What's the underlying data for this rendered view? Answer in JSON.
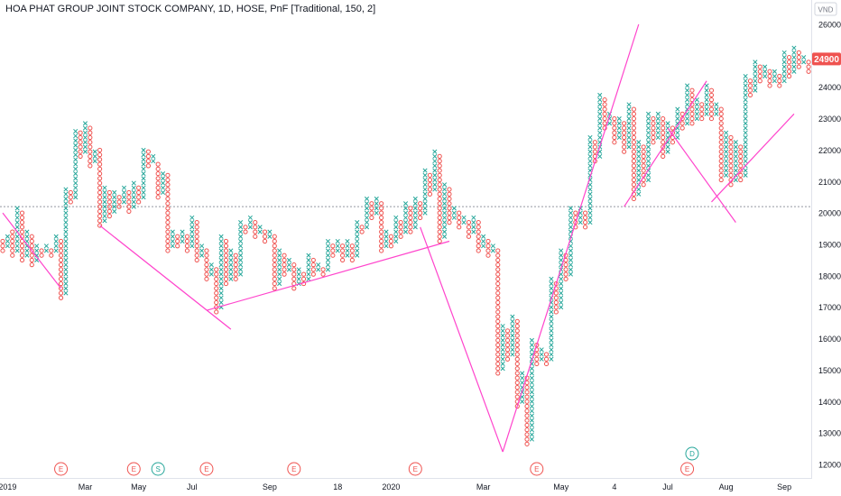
{
  "title": "HOA PHAT GROUP JOINT STOCK COMPANY, 1D, HOSE, PnF [Traditional, 150, 2]",
  "currency": "VND",
  "last_price": "24900",
  "colors": {
    "x": "#26a69a",
    "o": "#ef5350",
    "trendline": "#ff44cc",
    "price_tag": "#ef5350",
    "dotted_line": "#9598a1",
    "dividend_event": "#26a69a"
  },
  "chart_data": {
    "type": "point-and-figure",
    "box_size": 150,
    "reversal": 2,
    "ylim": [
      11700,
      26300
    ],
    "y_ticks": [
      "12000",
      "13000",
      "14000",
      "15000",
      "16000",
      "17000",
      "18000",
      "19000",
      "20000",
      "21000",
      "22000",
      "23000",
      "24000",
      "25000",
      "26000"
    ],
    "x_ticks": [
      {
        "label": "2019",
        "col": 1
      },
      {
        "label": "Mar",
        "col": 17
      },
      {
        "label": "May",
        "col": 28
      },
      {
        "label": "Jul",
        "col": 39
      },
      {
        "label": "Sep",
        "col": 55
      },
      {
        "label": "18",
        "col": 69
      },
      {
        "label": "2020",
        "col": 80
      },
      {
        "label": "Mar",
        "col": 99
      },
      {
        "label": "May",
        "col": 115
      },
      {
        "label": "4",
        "col": 126
      },
      {
        "label": "Jul",
        "col": 137
      },
      {
        "label": "Aug",
        "col": 149
      },
      {
        "label": "Sep",
        "col": 161
      }
    ],
    "columns": [
      {
        "t": "O",
        "lo": 18800,
        "hi": 19200
      },
      {
        "t": "X",
        "lo": 18950,
        "hi": 19350
      },
      {
        "t": "O",
        "lo": 18650,
        "hi": 19500
      },
      {
        "t": "X",
        "lo": 18800,
        "hi": 20150
      },
      {
        "t": "O",
        "lo": 18500,
        "hi": 20000
      },
      {
        "t": "X",
        "lo": 18650,
        "hi": 19400
      },
      {
        "t": "O",
        "lo": 18350,
        "hi": 19250
      },
      {
        "t": "X",
        "lo": 18500,
        "hi": 19050
      },
      {
        "t": "O",
        "lo": 18650,
        "hi": 18900
      },
      {
        "t": "X",
        "lo": 18800,
        "hi": 18950
      },
      {
        "t": "O",
        "lo": 18650,
        "hi": 18800
      },
      {
        "t": "X",
        "lo": 18800,
        "hi": 19350
      },
      {
        "t": "O",
        "lo": 17300,
        "hi": 19200
      },
      {
        "t": "X",
        "lo": 17450,
        "hi": 20850
      },
      {
        "t": "O",
        "lo": 20350,
        "hi": 20700
      },
      {
        "t": "X",
        "lo": 20500,
        "hi": 22700
      },
      {
        "t": "O",
        "lo": 21800,
        "hi": 22550
      },
      {
        "t": "X",
        "lo": 21950,
        "hi": 22850
      },
      {
        "t": "O",
        "lo": 21500,
        "hi": 22700
      },
      {
        "t": "X",
        "lo": 21650,
        "hi": 21950
      },
      {
        "t": "O",
        "lo": 19600,
        "hi": 22100
      },
      {
        "t": "X",
        "lo": 19750,
        "hi": 20900
      },
      {
        "t": "O",
        "lo": 19900,
        "hi": 20750
      },
      {
        "t": "X",
        "lo": 20050,
        "hi": 20750
      },
      {
        "t": "O",
        "lo": 20200,
        "hi": 20600
      },
      {
        "t": "X",
        "lo": 20350,
        "hi": 20900
      },
      {
        "t": "O",
        "lo": 20050,
        "hi": 20750
      },
      {
        "t": "X",
        "lo": 20200,
        "hi": 21050
      },
      {
        "t": "O",
        "lo": 20350,
        "hi": 20900
      },
      {
        "t": "X",
        "lo": 20500,
        "hi": 22100
      },
      {
        "t": "O",
        "lo": 21500,
        "hi": 21950
      },
      {
        "t": "X",
        "lo": 21650,
        "hi": 21800
      },
      {
        "t": "O",
        "lo": 20500,
        "hi": 21650
      },
      {
        "t": "X",
        "lo": 20650,
        "hi": 21350
      },
      {
        "t": "O",
        "lo": 18800,
        "hi": 21200
      },
      {
        "t": "X",
        "lo": 18950,
        "hi": 19400
      },
      {
        "t": "O",
        "lo": 18950,
        "hi": 19250
      },
      {
        "t": "X",
        "lo": 19100,
        "hi": 19400
      },
      {
        "t": "O",
        "lo": 18800,
        "hi": 19250
      },
      {
        "t": "X",
        "lo": 18950,
        "hi": 19950
      },
      {
        "t": "O",
        "lo": 18500,
        "hi": 19800
      },
      {
        "t": "X",
        "lo": 18650,
        "hi": 18950
      },
      {
        "t": "O",
        "lo": 17900,
        "hi": 18800
      },
      {
        "t": "X",
        "lo": 18050,
        "hi": 18350
      },
      {
        "t": "O",
        "lo": 16850,
        "hi": 18200
      },
      {
        "t": "X",
        "lo": 17000,
        "hi": 19250
      },
      {
        "t": "O",
        "lo": 17750,
        "hi": 19100
      },
      {
        "t": "X",
        "lo": 17900,
        "hi": 18800
      },
      {
        "t": "O",
        "lo": 17900,
        "hi": 18650
      },
      {
        "t": "X",
        "lo": 18050,
        "hi": 19750
      },
      {
        "t": "O",
        "lo": 19400,
        "hi": 19600
      },
      {
        "t": "X",
        "lo": 19550,
        "hi": 19850
      },
      {
        "t": "O",
        "lo": 19250,
        "hi": 19700
      },
      {
        "t": "X",
        "lo": 19400,
        "hi": 19550
      },
      {
        "t": "O",
        "lo": 19100,
        "hi": 19400
      },
      {
        "t": "X",
        "lo": 19250,
        "hi": 19400
      },
      {
        "t": "O",
        "lo": 17600,
        "hi": 19250
      },
      {
        "t": "X",
        "lo": 17750,
        "hi": 18800
      },
      {
        "t": "O",
        "lo": 18050,
        "hi": 18650
      },
      {
        "t": "X",
        "lo": 18200,
        "hi": 18500
      },
      {
        "t": "O",
        "lo": 17600,
        "hi": 18350
      },
      {
        "t": "X",
        "lo": 17750,
        "hi": 18200
      },
      {
        "t": "O",
        "lo": 17750,
        "hi": 18050
      },
      {
        "t": "X",
        "lo": 17900,
        "hi": 18650
      },
      {
        "t": "O",
        "lo": 18050,
        "hi": 18500
      },
      {
        "t": "X",
        "lo": 18200,
        "hi": 18350
      },
      {
        "t": "O",
        "lo": 18050,
        "hi": 18200
      },
      {
        "t": "X",
        "lo": 18200,
        "hi": 19100
      },
      {
        "t": "O",
        "lo": 18650,
        "hi": 18950
      },
      {
        "t": "X",
        "lo": 18800,
        "hi": 19100
      },
      {
        "t": "O",
        "lo": 18500,
        "hi": 18950
      },
      {
        "t": "X",
        "lo": 18650,
        "hi": 19100
      },
      {
        "t": "O",
        "lo": 18500,
        "hi": 18950
      },
      {
        "t": "X",
        "lo": 18650,
        "hi": 19700
      },
      {
        "t": "O",
        "lo": 19400,
        "hi": 19550
      },
      {
        "t": "X",
        "lo": 19550,
        "hi": 20450
      },
      {
        "t": "O",
        "lo": 19850,
        "hi": 20300
      },
      {
        "t": "X",
        "lo": 20000,
        "hi": 20450
      },
      {
        "t": "O",
        "lo": 18800,
        "hi": 20300
      },
      {
        "t": "X",
        "lo": 18950,
        "hi": 19400
      },
      {
        "t": "O",
        "lo": 18950,
        "hi": 19250
      },
      {
        "t": "X",
        "lo": 19100,
        "hi": 19850
      },
      {
        "t": "O",
        "lo": 19250,
        "hi": 19700
      },
      {
        "t": "X",
        "lo": 19400,
        "hi": 20300
      },
      {
        "t": "O",
        "lo": 19400,
        "hi": 20150
      },
      {
        "t": "X",
        "lo": 19550,
        "hi": 20450
      },
      {
        "t": "O",
        "lo": 19850,
        "hi": 20300
      },
      {
        "t": "X",
        "lo": 20000,
        "hi": 21350
      },
      {
        "t": "O",
        "lo": 20600,
        "hi": 21200
      },
      {
        "t": "X",
        "lo": 20750,
        "hi": 21950
      },
      {
        "t": "O",
        "lo": 19100,
        "hi": 21800
      },
      {
        "t": "X",
        "lo": 19250,
        "hi": 20900
      },
      {
        "t": "O",
        "lo": 19700,
        "hi": 20750
      },
      {
        "t": "X",
        "lo": 19850,
        "hi": 20150
      },
      {
        "t": "O",
        "lo": 19550,
        "hi": 20000
      },
      {
        "t": "X",
        "lo": 19700,
        "hi": 19850
      },
      {
        "t": "O",
        "lo": 19250,
        "hi": 19700
      },
      {
        "t": "X",
        "lo": 19400,
        "hi": 19850
      },
      {
        "t": "O",
        "lo": 18800,
        "hi": 19700
      },
      {
        "t": "X",
        "lo": 18950,
        "hi": 19250
      },
      {
        "t": "O",
        "lo": 18650,
        "hi": 19100
      },
      {
        "t": "X",
        "lo": 18800,
        "hi": 18950
      },
      {
        "t": "O",
        "lo": 14900,
        "hi": 18800
      },
      {
        "t": "X",
        "lo": 15050,
        "hi": 16400
      },
      {
        "t": "O",
        "lo": 15350,
        "hi": 16250
      },
      {
        "t": "X",
        "lo": 15500,
        "hi": 16700
      },
      {
        "t": "O",
        "lo": 13850,
        "hi": 16550
      },
      {
        "t": "X",
        "lo": 14000,
        "hi": 14900
      },
      {
        "t": "O",
        "lo": 12650,
        "hi": 14750
      },
      {
        "t": "X",
        "lo": 12800,
        "hi": 15950
      },
      {
        "t": "O",
        "lo": 15200,
        "hi": 15800
      },
      {
        "t": "X",
        "lo": 15350,
        "hi": 15650
      },
      {
        "t": "O",
        "lo": 15200,
        "hi": 15500
      },
      {
        "t": "X",
        "lo": 15350,
        "hi": 17900
      },
      {
        "t": "O",
        "lo": 16850,
        "hi": 17750
      },
      {
        "t": "X",
        "lo": 17000,
        "hi": 18800
      },
      {
        "t": "O",
        "lo": 17900,
        "hi": 18650
      },
      {
        "t": "X",
        "lo": 18050,
        "hi": 20150
      },
      {
        "t": "O",
        "lo": 19550,
        "hi": 20000
      },
      {
        "t": "X",
        "lo": 19700,
        "hi": 20150
      },
      {
        "t": "O",
        "lo": 19550,
        "hi": 20000
      },
      {
        "t": "X",
        "lo": 19700,
        "hi": 22400
      },
      {
        "t": "O",
        "lo": 21650,
        "hi": 22250
      },
      {
        "t": "X",
        "lo": 21800,
        "hi": 23750
      },
      {
        "t": "O",
        "lo": 22700,
        "hi": 23600
      },
      {
        "t": "X",
        "lo": 22850,
        "hi": 23150
      },
      {
        "t": "O",
        "lo": 22250,
        "hi": 23000
      },
      {
        "t": "X",
        "lo": 22400,
        "hi": 23000
      },
      {
        "t": "O",
        "lo": 21950,
        "hi": 22850
      },
      {
        "t": "X",
        "lo": 22100,
        "hi": 23450
      },
      {
        "t": "O",
        "lo": 20450,
        "hi": 23300
      },
      {
        "t": "X",
        "lo": 20600,
        "hi": 22250
      },
      {
        "t": "O",
        "lo": 20900,
        "hi": 22100
      },
      {
        "t": "X",
        "lo": 21050,
        "hi": 23150
      },
      {
        "t": "O",
        "lo": 22250,
        "hi": 23000
      },
      {
        "t": "X",
        "lo": 22400,
        "hi": 23150
      },
      {
        "t": "O",
        "lo": 21800,
        "hi": 23000
      },
      {
        "t": "X",
        "lo": 21950,
        "hi": 22850
      },
      {
        "t": "O",
        "lo": 22250,
        "hi": 22700
      },
      {
        "t": "X",
        "lo": 22400,
        "hi": 23300
      },
      {
        "t": "O",
        "lo": 22700,
        "hi": 23150
      },
      {
        "t": "X",
        "lo": 22850,
        "hi": 24050
      },
      {
        "t": "O",
        "lo": 22850,
        "hi": 23900
      },
      {
        "t": "X",
        "lo": 23000,
        "hi": 23600
      },
      {
        "t": "O",
        "lo": 23000,
        "hi": 23450
      },
      {
        "t": "X",
        "lo": 23150,
        "hi": 24050
      },
      {
        "t": "O",
        "lo": 23000,
        "hi": 23900
      },
      {
        "t": "X",
        "lo": 23150,
        "hi": 23450
      },
      {
        "t": "O",
        "lo": 21050,
        "hi": 23300
      },
      {
        "t": "X",
        "lo": 21200,
        "hi": 22550
      },
      {
        "t": "O",
        "lo": 20900,
        "hi": 22400
      },
      {
        "t": "X",
        "lo": 21050,
        "hi": 22250
      },
      {
        "t": "O",
        "lo": 21050,
        "hi": 22100
      },
      {
        "t": "X",
        "lo": 21200,
        "hi": 24350
      },
      {
        "t": "O",
        "lo": 23750,
        "hi": 24200
      },
      {
        "t": "X",
        "lo": 23900,
        "hi": 24800
      },
      {
        "t": "O",
        "lo": 24200,
        "hi": 24650
      },
      {
        "t": "X",
        "lo": 24350,
        "hi": 24650
      },
      {
        "t": "O",
        "lo": 24050,
        "hi": 24500
      },
      {
        "t": "X",
        "lo": 24200,
        "hi": 24500
      },
      {
        "t": "O",
        "lo": 24050,
        "hi": 24350
      },
      {
        "t": "X",
        "lo": 24200,
        "hi": 25100
      },
      {
        "t": "O",
        "lo": 24350,
        "hi": 24950
      },
      {
        "t": "X",
        "lo": 24500,
        "hi": 25250
      },
      {
        "t": "O",
        "lo": 24650,
        "hi": 25100
      },
      {
        "t": "X",
        "lo": 24800,
        "hi": 24950
      },
      {
        "t": "O",
        "lo": 24500,
        "hi": 24800
      }
    ],
    "trendlines": [
      {
        "x1": 0,
        "y1": 20000,
        "x2": 12,
        "y2": 17600
      },
      {
        "x1": 20,
        "y1": 19600,
        "x2": 47,
        "y2": 16300
      },
      {
        "x1": 42,
        "y1": 16900,
        "x2": 92,
        "y2": 19100
      },
      {
        "x1": 86,
        "y1": 19550,
        "x2": 103,
        "y2": 12400
      },
      {
        "x1": 103,
        "y1": 12400,
        "x2": 131,
        "y2": 26000
      },
      {
        "x1": 128,
        "y1": 20200,
        "x2": 145,
        "y2": 24200
      },
      {
        "x1": 137,
        "y1": 22700,
        "x2": 151,
        "y2": 19700
      },
      {
        "x1": 146,
        "y1": 20350,
        "x2": 163,
        "y2": 23150
      }
    ],
    "reference_level": 20200,
    "events": [
      {
        "label": "E",
        "col": 12,
        "kind": "earnings"
      },
      {
        "label": "E",
        "col": 27,
        "kind": "earnings"
      },
      {
        "label": "S",
        "col": 32,
        "kind": "split"
      },
      {
        "label": "E",
        "col": 42,
        "kind": "earnings"
      },
      {
        "label": "E",
        "col": 60,
        "kind": "earnings"
      },
      {
        "label": "E",
        "col": 85,
        "kind": "earnings"
      },
      {
        "label": "E",
        "col": 110,
        "kind": "earnings"
      },
      {
        "label": "E",
        "col": 141,
        "kind": "earnings"
      },
      {
        "label": "D",
        "col": 142,
        "kind": "dividend"
      }
    ]
  }
}
